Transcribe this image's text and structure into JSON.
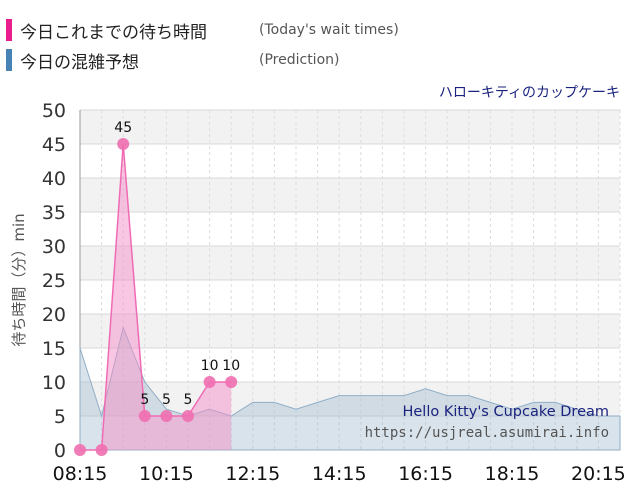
{
  "legend": {
    "today": {
      "label": "今日これまでの待ち時間",
      "sub": "(Today's wait times)",
      "color": "#e91e8c"
    },
    "prediction": {
      "label": "今日の混雑予想",
      "sub": "(Prediction)",
      "color": "#4682b4"
    }
  },
  "attraction_name_ja": "ハローキティのカップケーキ",
  "chart_data": {
    "type": "area",
    "ylabel": "待ち時間（分）min",
    "ylim": [
      0,
      50
    ],
    "y_ticks": [
      0,
      5,
      10,
      15,
      20,
      25,
      30,
      35,
      40,
      45,
      50
    ],
    "x_range": [
      "08:15",
      "20:45"
    ],
    "x_tick_labels": [
      "08:15",
      "10:15",
      "12:15",
      "14:15",
      "16:15",
      "18:15",
      "20:15"
    ],
    "grid": true,
    "series": [
      {
        "kind": "today",
        "x": [
          "08:15",
          "08:45",
          "09:15",
          "09:45",
          "10:15",
          "10:45",
          "11:15",
          "11:45"
        ],
        "values": [
          0,
          0,
          45,
          5,
          5,
          5,
          10,
          10
        ],
        "data_labels": [
          "",
          "",
          "45",
          "5",
          "5",
          "5",
          "10",
          "10"
        ],
        "color": "#f06bb4"
      },
      {
        "kind": "prediction",
        "x": [
          "08:15",
          "08:45",
          "09:15",
          "09:45",
          "10:15",
          "10:45",
          "11:15",
          "11:45",
          "12:15",
          "12:45",
          "13:15",
          "13:45",
          "14:15",
          "14:45",
          "15:15",
          "15:45",
          "16:15",
          "16:45",
          "17:15",
          "17:45",
          "18:15",
          "18:45",
          "19:15",
          "19:45",
          "20:15",
          "20:45"
        ],
        "values": [
          15,
          5,
          18,
          10,
          6,
          5,
          6,
          5,
          7,
          7,
          6,
          7,
          8,
          8,
          8,
          8,
          9,
          8,
          8,
          7,
          6,
          7,
          7,
          6,
          5,
          5
        ],
        "color": "#9fb8cc"
      }
    ]
  },
  "watermark": {
    "title": "Hello Kitty's Cupcake Dream",
    "url": "https://usjreal.asumirai.info"
  }
}
